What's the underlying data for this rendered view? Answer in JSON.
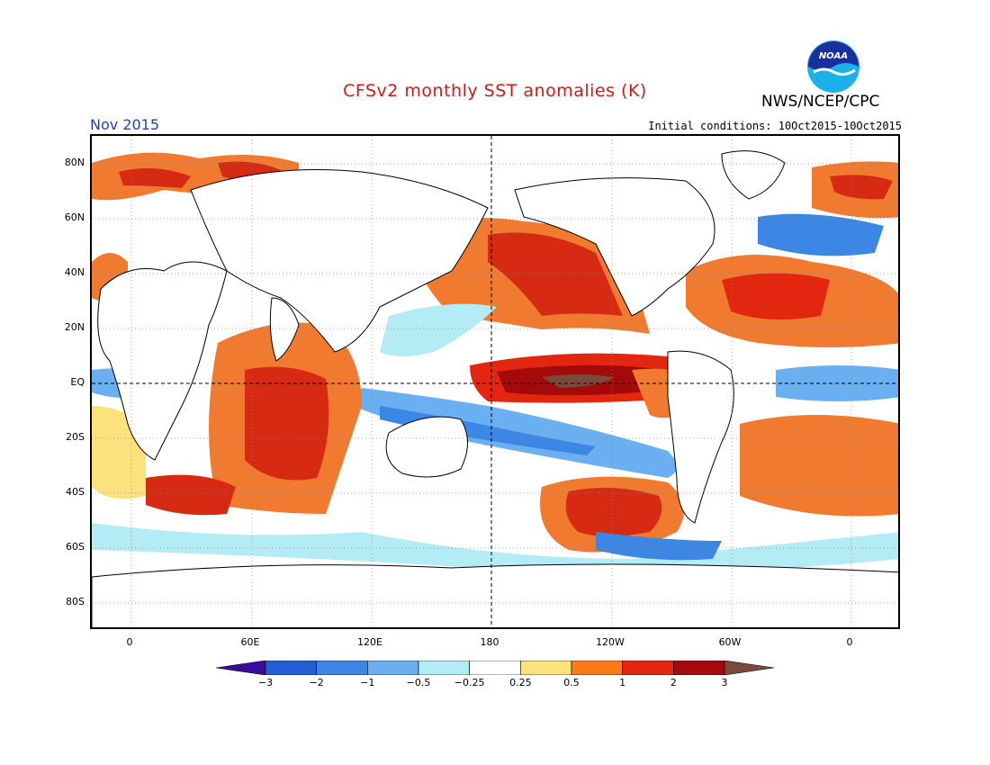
{
  "header": {
    "title": "CFSv2 monthly SST anomalies (K)",
    "org": "NWS/NCEP/CPC",
    "valid_month": "Nov 2015",
    "init_conditions": "Initial conditions: 10Oct2015-10Oct2015",
    "logo_text": "NOAA"
  },
  "map": {
    "lat_labels": [
      "80N",
      "60N",
      "40N",
      "20N",
      "EQ",
      "20S",
      "40S",
      "60S",
      "80S"
    ],
    "lon_labels": [
      "0",
      "60E",
      "120E",
      "180",
      "120W",
      "60W",
      "0"
    ]
  },
  "colorbar": {
    "labels": [
      "-3",
      "-2",
      "-1",
      "-0.5",
      "-0.25",
      "0.25",
      "0.5",
      "1",
      "2",
      "3"
    ],
    "colors": [
      "#3a0b9e",
      "#1f5fd2",
      "#3c86e6",
      "#6aaff0",
      "#b4ecf5",
      "#ffffff",
      "#fbe27c",
      "#fb7a1a",
      "#e3260f",
      "#a50a0a",
      "#7a4b3a"
    ]
  }
}
